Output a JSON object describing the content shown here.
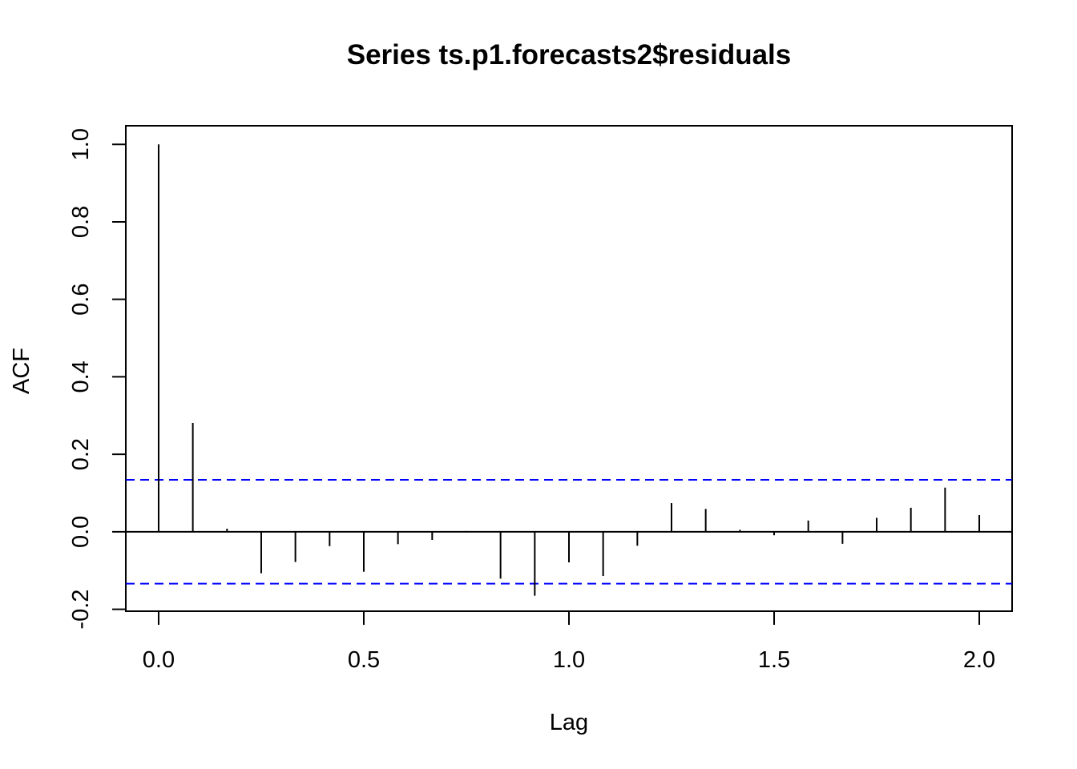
{
  "chart_data": {
    "type": "bar",
    "title": "Series  ts.p1.forecasts2$residuals",
    "xlabel": "Lag",
    "ylabel": "ACF",
    "xlim": [
      -0.08,
      2.08
    ],
    "ylim": [
      -0.205,
      1.048
    ],
    "x_ticks": [
      0.0,
      0.5,
      1.0,
      1.5,
      2.0
    ],
    "x_tick_labels": [
      "0.0",
      "0.5",
      "1.0",
      "1.5",
      "2.0"
    ],
    "y_ticks": [
      -0.2,
      0.0,
      0.2,
      0.4,
      0.6,
      0.8,
      1.0
    ],
    "y_tick_labels": [
      "-0.2",
      "0.0",
      "0.2",
      "0.4",
      "0.6",
      "0.8",
      "1.0"
    ],
    "lags": [
      0.0,
      0.0833,
      0.1667,
      0.25,
      0.3333,
      0.4167,
      0.5,
      0.5833,
      0.6667,
      0.75,
      0.8333,
      0.9167,
      1.0,
      1.0833,
      1.1667,
      1.25,
      1.3333,
      1.4167,
      1.5,
      1.5833,
      1.6667,
      1.75,
      1.8333,
      1.9167,
      2.0
    ],
    "acf": [
      1.0,
      0.281,
      0.008,
      -0.107,
      -0.078,
      -0.037,
      -0.103,
      -0.032,
      -0.021,
      0.002,
      -0.121,
      -0.165,
      -0.079,
      -0.114,
      -0.036,
      0.074,
      0.059,
      0.005,
      -0.009,
      0.029,
      -0.031,
      0.036,
      0.062,
      0.114,
      0.043
    ],
    "ci_upper": 0.134,
    "ci_lower": -0.134,
    "ci_color": "#0000ff",
    "zero_line": true,
    "grid": false,
    "legend": "none"
  }
}
